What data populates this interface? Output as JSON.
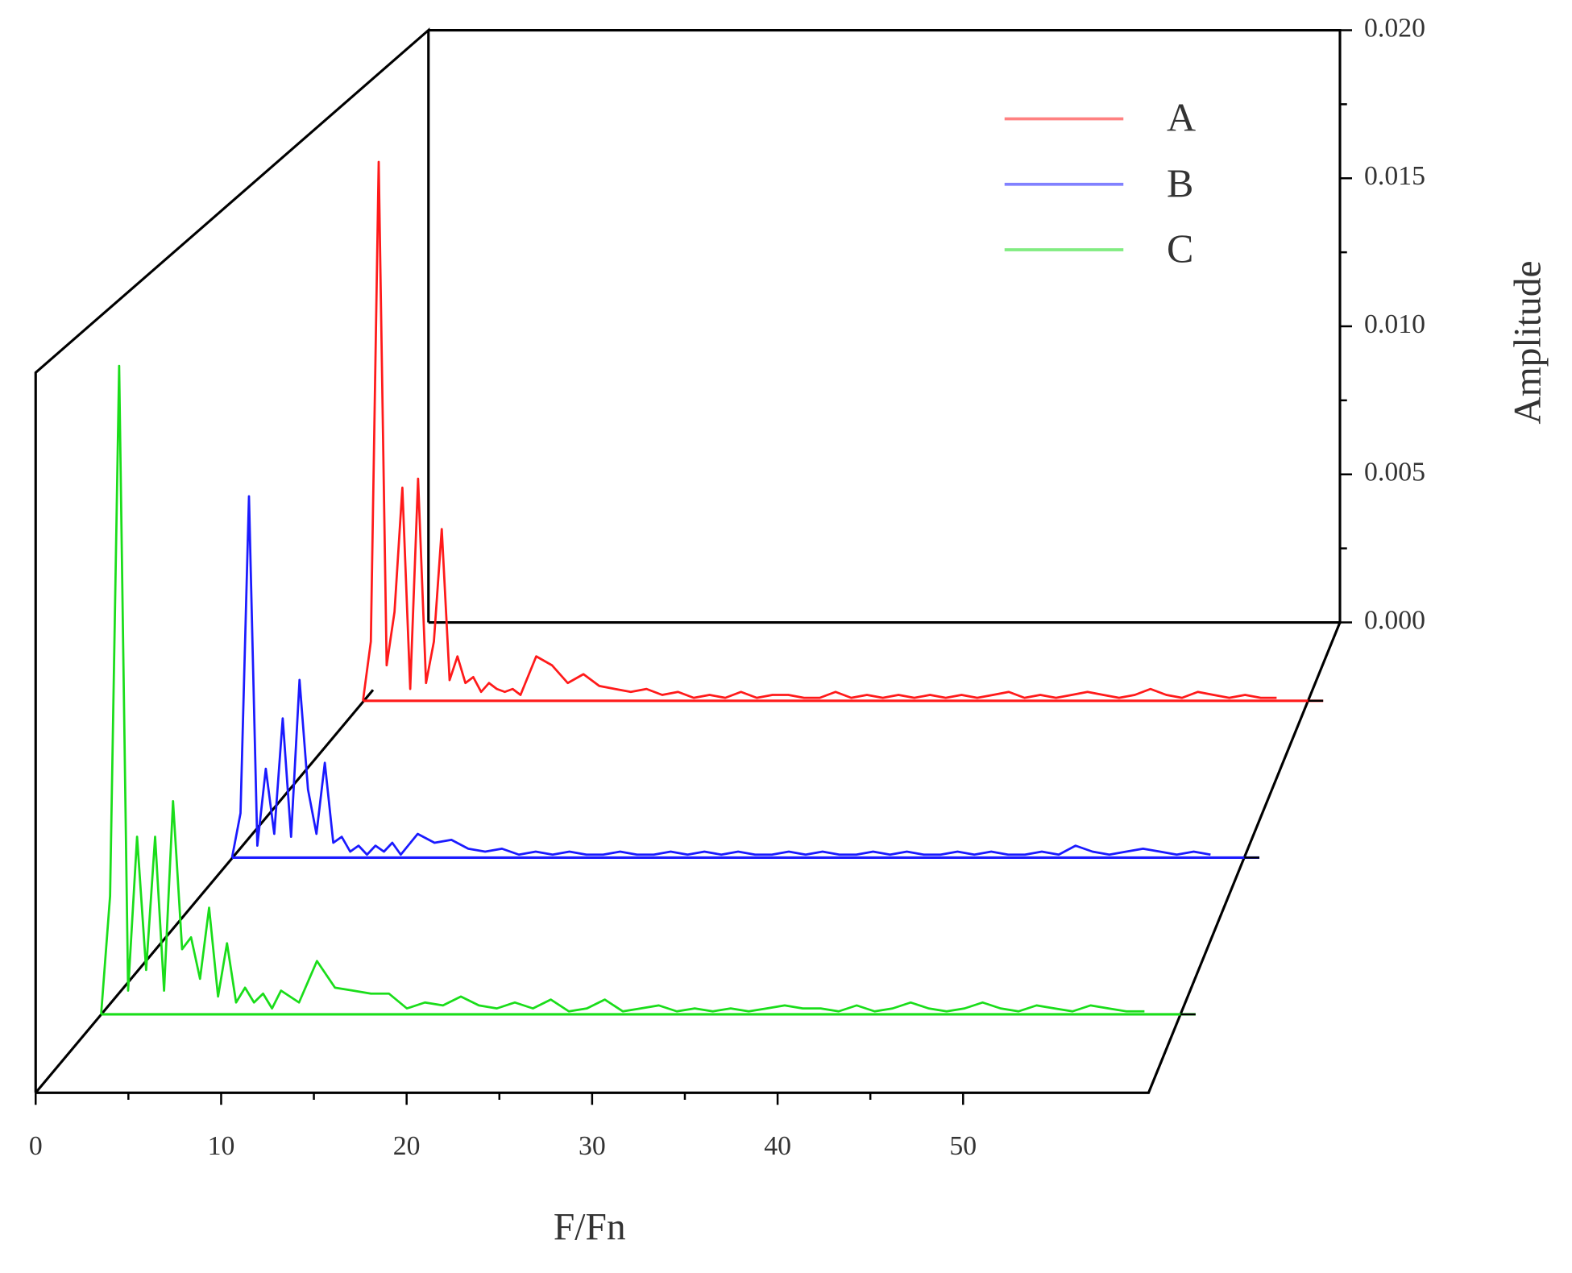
{
  "chart_data": {
    "type": "waterfall",
    "xlabel": "F/Fn",
    "ylabel": "Amplitude",
    "xlim": [
      0,
      60
    ],
    "xticks": [
      0,
      10,
      20,
      30,
      40,
      50
    ],
    "ylim": [
      0,
      0.02
    ],
    "yticks": [
      {
        "value": 0,
        "label": "0.000"
      },
      0.005,
      {
        "value": 0.01,
        "label": "0.010"
      },
      0.015,
      {
        "value": 0.02,
        "label": "0.020"
      }
    ],
    "legend": "upper right",
    "x": [
      0,
      0.5,
      1,
      1.5,
      2,
      2.5,
      3,
      3.5,
      4,
      4.5,
      5,
      5.5,
      6,
      6.5,
      7,
      7.5,
      8,
      8.5,
      9,
      9.5,
      10,
      11,
      12,
      13,
      14,
      15,
      16,
      17,
      18,
      19,
      20,
      21,
      22,
      23,
      24,
      25,
      26,
      27,
      28,
      29,
      30,
      31,
      32,
      33,
      34,
      35,
      36,
      37,
      38,
      39,
      40,
      41,
      42,
      43,
      44,
      45,
      46,
      47,
      48,
      49,
      50,
      51,
      52,
      53,
      54,
      55,
      56,
      57,
      58
    ],
    "series": [
      {
        "name": "A",
        "color": "#ff1a1a",
        "values": [
          0,
          0.002,
          0.0182,
          0.0012,
          0.003,
          0.0072,
          0.0004,
          0.0075,
          0.0006,
          0.002,
          0.0058,
          0.0007,
          0.0015,
          0.0006,
          0.0008,
          0.0003,
          0.0006,
          0.0004,
          0.0003,
          0.0004,
          0.0002,
          0.0015,
          0.0012,
          0.0006,
          0.0009,
          0.0005,
          0.0004,
          0.0003,
          0.0004,
          0.0002,
          0.0003,
          0.0001,
          0.0002,
          0.0001,
          0.0003,
          0.0001,
          0.0002,
          0.0002,
          0.0001,
          0.0001,
          0.0003,
          0.0001,
          0.0002,
          0.0001,
          0.0002,
          0.0001,
          0.0002,
          0.0001,
          0.0002,
          0.0001,
          0.0002,
          0.0003,
          0.0001,
          0.0002,
          0.0001,
          0.0002,
          0.0003,
          0.0002,
          0.0001,
          0.0002,
          0.0004,
          0.0002,
          0.0001,
          0.0003,
          0.0002,
          0.0001,
          0.0002,
          0.0001,
          0.0001
        ]
      },
      {
        "name": "B",
        "color": "#1a1aff",
        "values": [
          0,
          0.0015,
          0.0122,
          0.0004,
          0.003,
          0.0008,
          0.0047,
          0.0007,
          0.006,
          0.0023,
          0.0008,
          0.0032,
          0.0005,
          0.0007,
          0.0002,
          0.0004,
          0.0001,
          0.0004,
          0.0002,
          0.0005,
          0.0001,
          0.0008,
          0.0005,
          0.0006,
          0.0003,
          0.0002,
          0.0003,
          0.0001,
          0.0002,
          0.0001,
          0.0002,
          0.0001,
          0.0001,
          0.0002,
          0.0001,
          0.0001,
          0.0002,
          0.0001,
          0.0002,
          0.0001,
          0.0002,
          0.0001,
          0.0001,
          0.0002,
          0.0001,
          0.0002,
          0.0001,
          0.0001,
          0.0002,
          0.0001,
          0.0002,
          0.0001,
          0.0001,
          0.0002,
          0.0001,
          0.0002,
          0.0001,
          0.0001,
          0.0002,
          0.0001,
          0.0004,
          0.0002,
          0.0001,
          0.0002,
          0.0003,
          0.0002,
          0.0001,
          0.0002,
          0.0001
        ]
      },
      {
        "name": "C",
        "color": "#1add1a",
        "values": [
          0,
          0.004,
          0.0219,
          0.0008,
          0.006,
          0.0015,
          0.006,
          0.0008,
          0.0072,
          0.0022,
          0.0026,
          0.0012,
          0.0036,
          0.0006,
          0.0024,
          0.0004,
          0.0009,
          0.0004,
          0.0007,
          0.0002,
          0.0008,
          0.0004,
          0.0018,
          0.0009,
          0.0008,
          0.0007,
          0.0007,
          0.0002,
          0.0004,
          0.0003,
          0.0006,
          0.0003,
          0.0002,
          0.0004,
          0.0002,
          0.0005,
          0.0001,
          0.0002,
          0.0005,
          0.0001,
          0.0002,
          0.0003,
          0.0001,
          0.0002,
          0.0001,
          0.0002,
          0.0001,
          0.0002,
          0.0003,
          0.0002,
          0.0002,
          0.0001,
          0.0003,
          0.0001,
          0.0002,
          0.0004,
          0.0002,
          0.0001,
          0.0002,
          0.0004,
          0.0002,
          0.0001,
          0.0003,
          0.0002,
          0.0001,
          0.0003,
          0.0002,
          0.0001,
          0.0001
        ]
      }
    ]
  }
}
